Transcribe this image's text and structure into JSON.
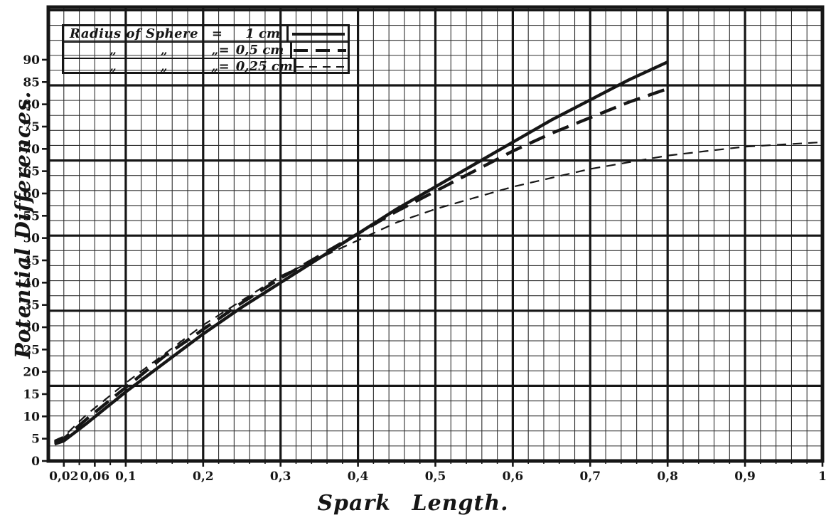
{
  "colors": {
    "ink": "#161616",
    "paper": "#ffffff",
    "fine_grid": "#2e2e2e"
  },
  "axes": {
    "x_title": "Spark Length.",
    "y_title": "Potential Differences.",
    "x_ticks": [
      {
        "value": 0.02,
        "label": "0,02"
      },
      {
        "value": 0.06,
        "label": "0,06"
      },
      {
        "value": 0.1,
        "label": "0,1"
      },
      {
        "value": 0.2,
        "label": "0,2"
      },
      {
        "value": 0.3,
        "label": "0,3"
      },
      {
        "value": 0.4,
        "label": "0,4"
      },
      {
        "value": 0.5,
        "label": "0,5"
      },
      {
        "value": 0.6,
        "label": "0,6"
      },
      {
        "value": 0.7,
        "label": "0,7"
      },
      {
        "value": 0.8,
        "label": "0,8"
      },
      {
        "value": 0.9,
        "label": "0,9"
      },
      {
        "value": 1.0,
        "label": "1"
      }
    ],
    "x_minor_tick_values": [
      0.04,
      0.08
    ],
    "y_tick_values": [
      0,
      5,
      10,
      15,
      20,
      25,
      30,
      35,
      40,
      45,
      50,
      55,
      60,
      65,
      70,
      75,
      80,
      85,
      90
    ]
  },
  "legend": {
    "rows": [
      {
        "label": "Radius of Sphere",
        "eq": "=",
        "value": "1 cm",
        "style": "solid-thick"
      },
      {
        "label": "„ „ „",
        "eq": "=",
        "value": "0,5 cm",
        "style": "dashed-thick"
      },
      {
        "label": "„ „ „",
        "eq": "=",
        "value": "0,25 cm",
        "style": "dashed-thin"
      }
    ]
  },
  "chart_data": {
    "type": "line",
    "title": "",
    "xlabel": "Spark Length.",
    "ylabel": "Potential Differences.",
    "xlim": [
      0,
      1
    ],
    "ylim": [
      0,
      90
    ],
    "grid": "fine hand-ruled graph paper, bold ruling every 5 cells",
    "legend_position": "top-left",
    "x_tick_labels": [
      "0,02",
      "0,06",
      "0,1",
      "0,2",
      "0,3",
      "0,4",
      "0,5",
      "0,6",
      "0,7",
      "0,8",
      "0,9",
      "1"
    ],
    "y_tick_labels": [
      "0",
      "5",
      "10",
      "15",
      "20",
      "25",
      "30",
      "35",
      "40",
      "45",
      "50",
      "55",
      "60",
      "65",
      "70",
      "75",
      "80",
      "85",
      "90"
    ],
    "series": [
      {
        "name": "Radius of Sphere = 1 cm",
        "line_style": "solid",
        "stroke_weight": "thick",
        "x": [
          0.008,
          0.02,
          0.05,
          0.1,
          0.15,
          0.2,
          0.25,
          0.3,
          0.35,
          0.4,
          0.45,
          0.5,
          0.55,
          0.6,
          0.65,
          0.7,
          0.75,
          0.8
        ],
        "y": [
          3.8,
          4.5,
          8.5,
          15.5,
          22,
          28.5,
          34.5,
          40,
          45.5,
          51,
          56.5,
          61.5,
          66.5,
          71.5,
          76.5,
          81,
          85.5,
          89.5
        ]
      },
      {
        "name": "Radius of Sphere = 0,5 cm",
        "line_style": "dashed",
        "stroke_weight": "thick",
        "x": [
          0.008,
          0.02,
          0.05,
          0.1,
          0.15,
          0.2,
          0.25,
          0.3,
          0.35,
          0.4,
          0.45,
          0.5,
          0.55,
          0.6,
          0.65,
          0.7,
          0.75,
          0.8
        ],
        "y": [
          4.2,
          5,
          9.5,
          16.5,
          23.5,
          29.5,
          35.5,
          41,
          46,
          51,
          56,
          60.5,
          65,
          69.5,
          73.5,
          77,
          80.5,
          83.5
        ]
      },
      {
        "name": "Radius of Sphere = 0,25 cm",
        "line_style": "dashed",
        "stroke_weight": "thin",
        "x": [
          0.008,
          0.02,
          0.05,
          0.1,
          0.15,
          0.2,
          0.25,
          0.3,
          0.35,
          0.4,
          0.45,
          0.5,
          0.55,
          0.6,
          0.65,
          0.7,
          0.75,
          0.8,
          0.85,
          0.9,
          0.95,
          1.0
        ],
        "y": [
          4.6,
          5.5,
          10.5,
          17.5,
          24,
          30.5,
          36,
          41.5,
          45.5,
          49.5,
          53.5,
          56.5,
          59,
          61.5,
          63.5,
          65.5,
          67,
          68.5,
          69.5,
          70.5,
          71,
          71.5
        ]
      }
    ]
  }
}
